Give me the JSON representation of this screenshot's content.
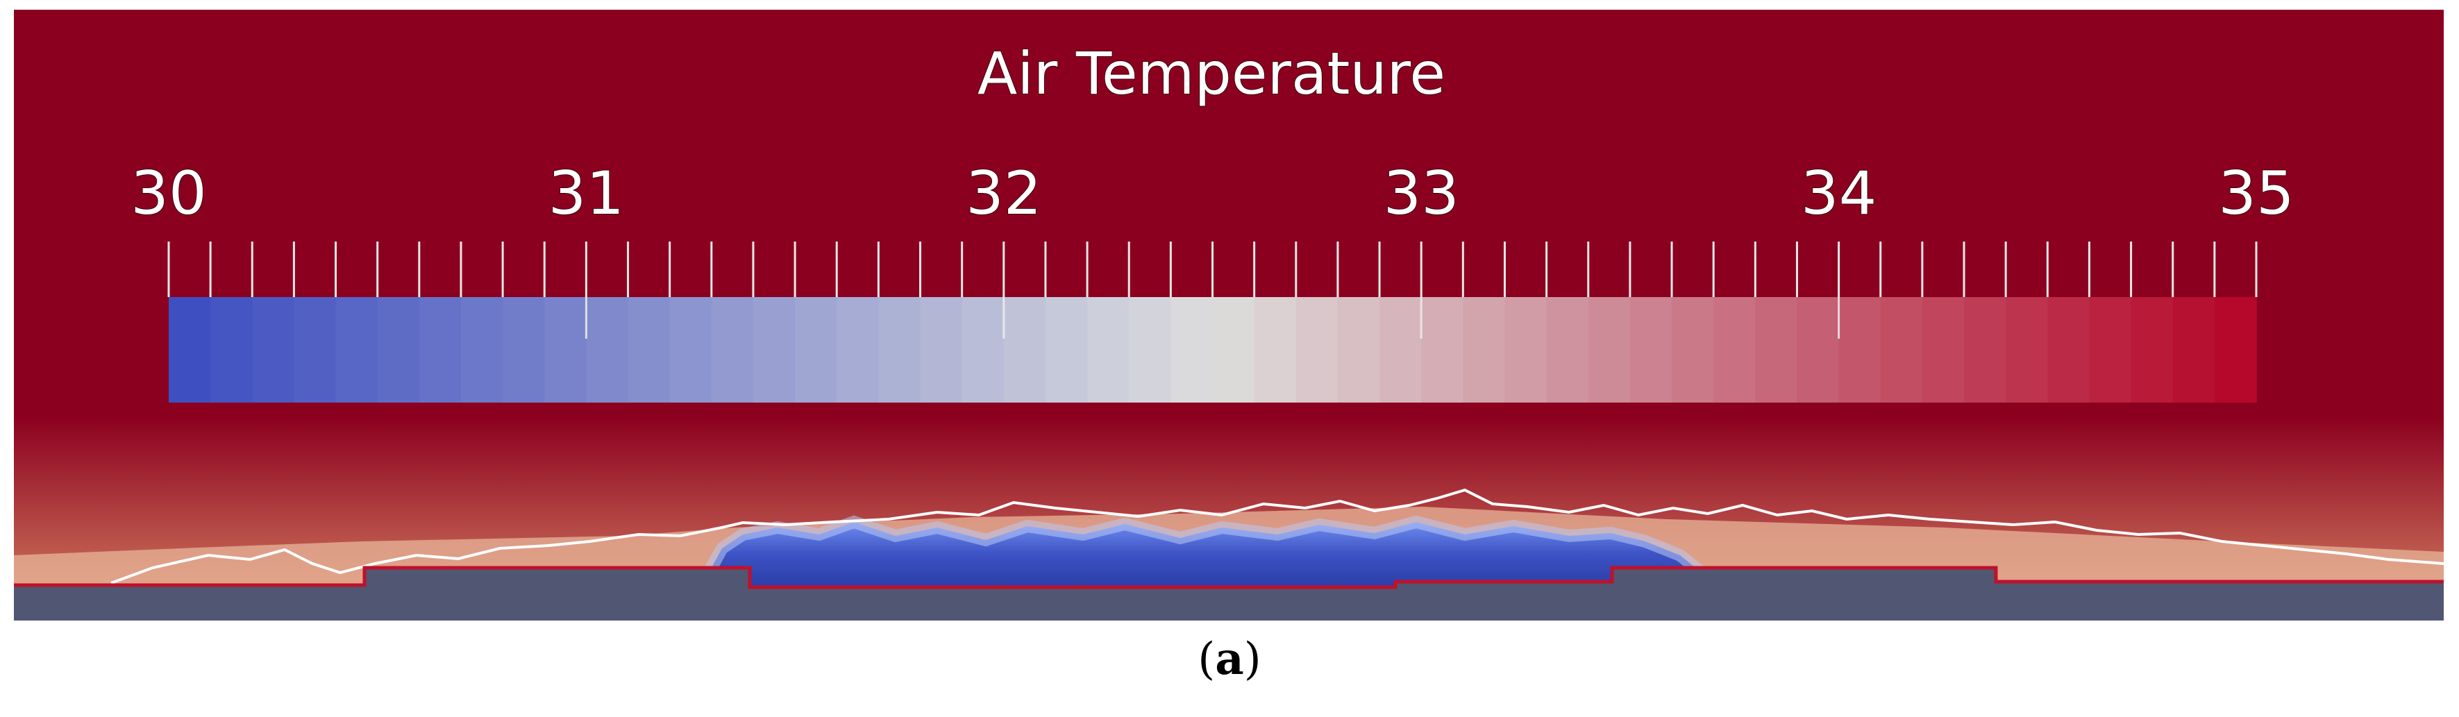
{
  "title": "Air Temperature",
  "colorbar": {
    "min": 30,
    "max": 35,
    "major_ticks": [
      "30",
      "31",
      "32",
      "33",
      "34",
      "35"
    ],
    "minor_divisions_per_major": 10,
    "colormap": "cool-to-warm",
    "color_low": "#3b4cc0",
    "color_mid": "#dddddd",
    "color_high": "#b40426"
  },
  "field": {
    "background_color": "#8c001f",
    "ground_color": "#515672",
    "ground_outline_color": "#c0102a",
    "isoline_color": "#ffffff"
  },
  "caption": {
    "open": "(",
    "label": "a",
    "close": ")"
  }
}
